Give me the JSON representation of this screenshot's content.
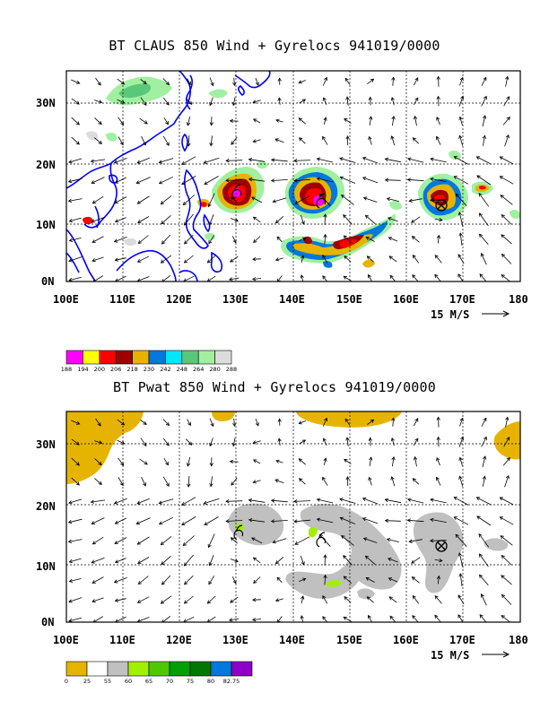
{
  "panel1": {
    "title": "BT CLAUS 850 Wind + Gyrelocs 941019/0000",
    "lat_ticks": [
      "30N",
      "20N",
      "10N",
      "0N"
    ],
    "lon_ticks": [
      "100E",
      "110E",
      "120E",
      "130E",
      "140E",
      "150E",
      "160E",
      "170E",
      "180"
    ],
    "ref_vector": "15 M/S",
    "colorbar": {
      "colors": [
        "#ff00ff",
        "#ffff00",
        "#ff0000",
        "#a00000",
        "#e6b400",
        "#0078dc",
        "#00e6ff",
        "#5ac878",
        "#a0f0a0",
        "#dcdcdc"
      ],
      "labels": [
        "188",
        "194",
        "200",
        "206",
        "218",
        "230",
        "242",
        "248",
        "264",
        "280",
        "288"
      ]
    },
    "markers": [
      {
        "type": "spiral",
        "lon": 129,
        "lat": 14.5
      },
      {
        "type": "spiral",
        "lon": 144,
        "lat": 13
      },
      {
        "type": "circle-x",
        "lon": 166.5,
        "lat": 12.5
      }
    ]
  },
  "panel2": {
    "title": "BT Pwat 850 Wind + Gyrelocs 941019/0000",
    "lat_ticks": [
      "30N",
      "20N",
      "10N",
      "0N"
    ],
    "lon_ticks": [
      "100E",
      "110E",
      "120E",
      "130E",
      "140E",
      "150E",
      "160E",
      "170E",
      "180"
    ],
    "ref_vector": "15 M/S",
    "colorbar": {
      "colors": [
        "#e6b400",
        "#ffffff",
        "#c0c0c0",
        "#a0f000",
        "#50c800",
        "#00a000",
        "#007800",
        "#0078dc",
        "#8c00c8"
      ],
      "labels": [
        "0",
        "25",
        "55",
        "60",
        "65",
        "70",
        "75",
        "80",
        "82.75"
      ]
    },
    "markers": [
      {
        "type": "spiral",
        "lon": 130,
        "lat": 14.5
      },
      {
        "type": "spiral",
        "lon": 145,
        "lat": 13
      },
      {
        "type": "circle-x",
        "lon": 166.5,
        "lat": 12.5
      }
    ]
  }
}
